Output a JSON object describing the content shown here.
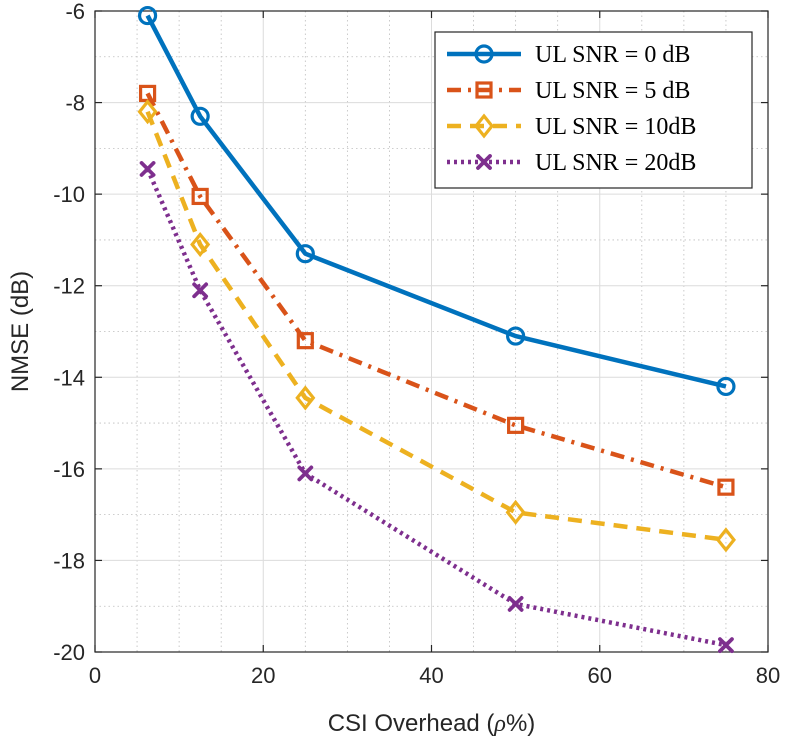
{
  "chart_data": {
    "type": "line",
    "title": "",
    "xlabel_main": "CSI Overhead (",
    "xlabel_symbol": "ρ",
    "xlabel_tail": "%)",
    "ylabel": "NMSE (dB)",
    "xlim": [
      0,
      80
    ],
    "ylim": [
      -20,
      -6
    ],
    "xticks": [
      0,
      20,
      40,
      60,
      80
    ],
    "yticks": [
      -20,
      -18,
      -16,
      -14,
      -12,
      -10,
      -8,
      -6
    ],
    "xtick_labels": [
      "0",
      "20",
      "40",
      "60",
      "80"
    ],
    "ytick_labels": [
      "-20",
      "-18",
      "-16",
      "-14",
      "-12",
      "-10",
      "-8",
      "-6"
    ],
    "grid": true,
    "minor_grid": true,
    "legend_position": "top-right",
    "x": [
      6.25,
      12.5,
      25,
      50,
      75
    ],
    "series": [
      {
        "name": "UL SNR = 0 dB",
        "values": [
          -6.1,
          -8.3,
          -11.3,
          -13.1,
          -14.2
        ],
        "color": "#0072BD",
        "marker": "circle",
        "dash": "solid"
      },
      {
        "name": "UL SNR = 5 dB",
        "values": [
          -7.8,
          -10.05,
          -13.2,
          -15.05,
          -16.4
        ],
        "color": "#D95319",
        "marker": "square",
        "dash": "dashdot"
      },
      {
        "name": "UL SNR = 10dB",
        "values": [
          -8.2,
          -11.1,
          -14.45,
          -16.95,
          -17.55
        ],
        "color": "#EDB120",
        "marker": "diamond",
        "dash": "dashed"
      },
      {
        "name": "UL SNR = 20dB",
        "values": [
          -9.45,
          -12.1,
          -16.1,
          -18.95,
          -19.85
        ],
        "color": "#7E2F8E",
        "marker": "x",
        "dash": "dotted"
      }
    ]
  }
}
